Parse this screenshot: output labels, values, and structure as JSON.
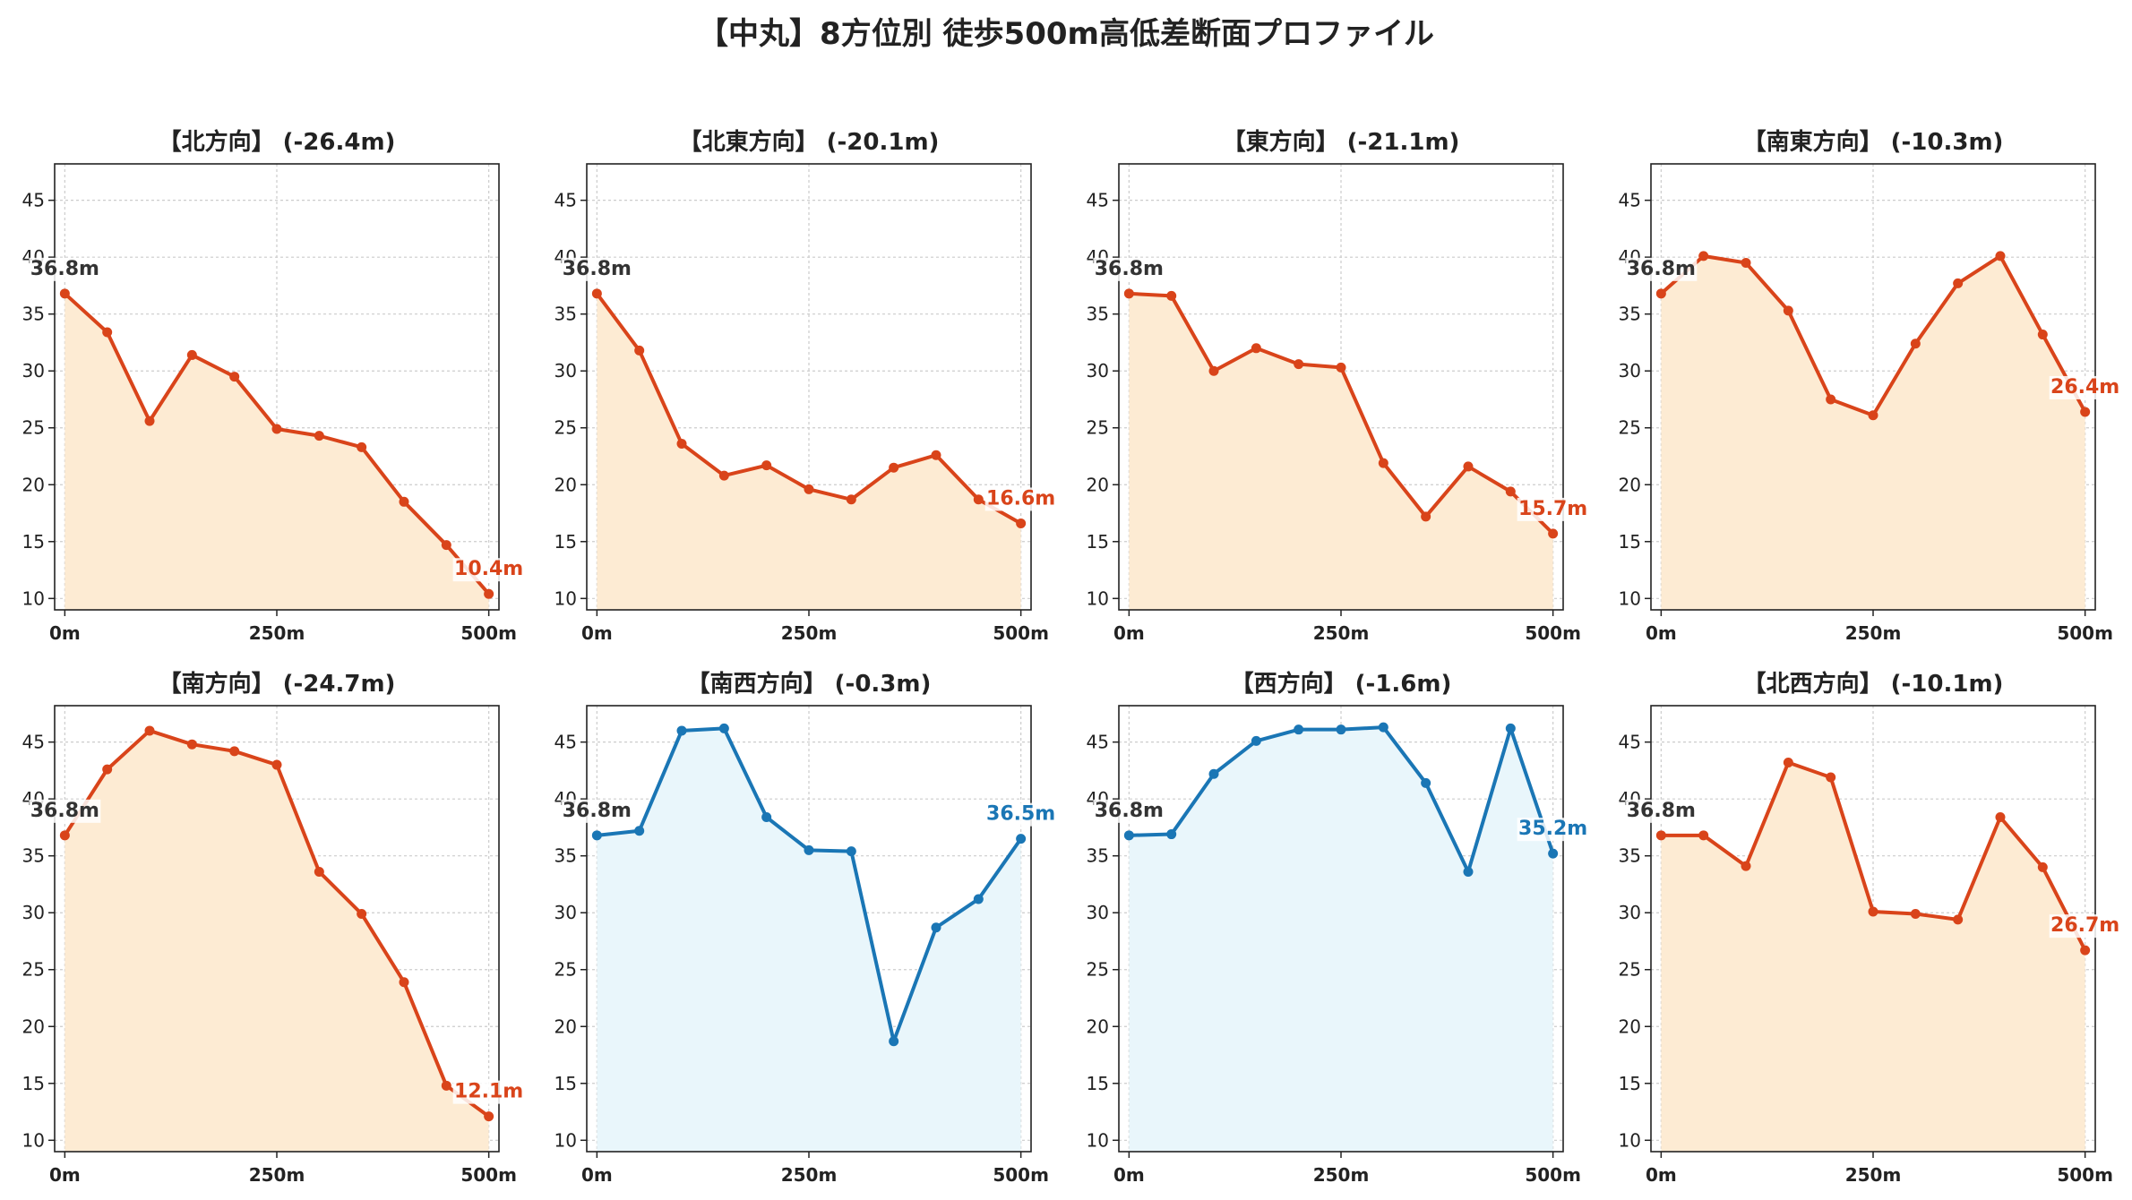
{
  "title": "【中丸】8方位別 徒歩500m高低差断面プロファイル",
  "colors": {
    "loss_line": "#d9441a",
    "loss_fill": "#fdebd3",
    "flat_line": "#1a76b5",
    "flat_fill": "#e9f6fb",
    "start_label": "#333333",
    "grid": "#cccccc",
    "axis": "#222222"
  },
  "chart_data": [
    {
      "type": "area",
      "title": "【北方向】 (-26.4m)",
      "theme": "loss",
      "x": [
        0,
        50,
        100,
        150,
        200,
        250,
        300,
        350,
        400,
        450,
        500
      ],
      "y": [
        36.8,
        33.4,
        25.6,
        31.4,
        29.5,
        24.9,
        24.3,
        23.3,
        18.5,
        14.7,
        10.4
      ],
      "start_label": "36.8m",
      "end_label": "10.4m",
      "xlim": [
        -12,
        512
      ],
      "ylim": [
        9,
        48.2
      ],
      "xticks": [
        {
          "v": 0,
          "label": "0m"
        },
        {
          "v": 250,
          "label": "250m"
        },
        {
          "v": 500,
          "label": "500m"
        }
      ],
      "yticks": [
        {
          "v": 10,
          "label": "10"
        },
        {
          "v": 15,
          "label": "15"
        },
        {
          "v": 20,
          "label": "20"
        },
        {
          "v": 25,
          "label": "25"
        },
        {
          "v": 30,
          "label": "30"
        },
        {
          "v": 35,
          "label": "35"
        },
        {
          "v": 40,
          "label": "40"
        },
        {
          "v": 45,
          "label": "45"
        }
      ],
      "grid": true
    },
    {
      "type": "area",
      "title": "【北東方向】 (-20.1m)",
      "theme": "loss",
      "x": [
        0,
        50,
        100,
        150,
        200,
        250,
        300,
        350,
        400,
        450,
        500
      ],
      "y": [
        36.8,
        31.8,
        23.6,
        20.8,
        21.7,
        19.6,
        18.7,
        21.5,
        22.6,
        18.7,
        16.6
      ],
      "start_label": "36.8m",
      "end_label": "16.6m",
      "xlim": [
        -12,
        512
      ],
      "ylim": [
        9,
        48.2
      ],
      "xticks": [
        {
          "v": 0,
          "label": "0m"
        },
        {
          "v": 250,
          "label": "250m"
        },
        {
          "v": 500,
          "label": "500m"
        }
      ],
      "yticks": [
        {
          "v": 10,
          "label": "10"
        },
        {
          "v": 15,
          "label": "15"
        },
        {
          "v": 20,
          "label": "20"
        },
        {
          "v": 25,
          "label": "25"
        },
        {
          "v": 30,
          "label": "30"
        },
        {
          "v": 35,
          "label": "35"
        },
        {
          "v": 40,
          "label": "40"
        },
        {
          "v": 45,
          "label": "45"
        }
      ],
      "grid": true
    },
    {
      "type": "area",
      "title": "【東方向】 (-21.1m)",
      "theme": "loss",
      "x": [
        0,
        50,
        100,
        150,
        200,
        250,
        300,
        350,
        400,
        450,
        500
      ],
      "y": [
        36.8,
        36.6,
        30.0,
        32.0,
        30.6,
        30.3,
        21.9,
        17.2,
        21.6,
        19.4,
        15.7
      ],
      "start_label": "36.8m",
      "end_label": "15.7m",
      "xlim": [
        -12,
        512
      ],
      "ylim": [
        9,
        48.2
      ],
      "xticks": [
        {
          "v": 0,
          "label": "0m"
        },
        {
          "v": 250,
          "label": "250m"
        },
        {
          "v": 500,
          "label": "500m"
        }
      ],
      "yticks": [
        {
          "v": 10,
          "label": "10"
        },
        {
          "v": 15,
          "label": "15"
        },
        {
          "v": 20,
          "label": "20"
        },
        {
          "v": 25,
          "label": "25"
        },
        {
          "v": 30,
          "label": "30"
        },
        {
          "v": 35,
          "label": "35"
        },
        {
          "v": 40,
          "label": "40"
        },
        {
          "v": 45,
          "label": "45"
        }
      ],
      "grid": true
    },
    {
      "type": "area",
      "title": "【南東方向】 (-10.3m)",
      "theme": "loss",
      "x": [
        0,
        50,
        100,
        150,
        200,
        250,
        300,
        350,
        400,
        450,
        500
      ],
      "y": [
        36.8,
        40.1,
        39.5,
        35.3,
        27.5,
        26.1,
        32.4,
        37.7,
        40.1,
        33.2,
        26.4
      ],
      "start_label": "36.8m",
      "end_label": "26.4m",
      "xlim": [
        -12,
        512
      ],
      "ylim": [
        9,
        48.2
      ],
      "xticks": [
        {
          "v": 0,
          "label": "0m"
        },
        {
          "v": 250,
          "label": "250m"
        },
        {
          "v": 500,
          "label": "500m"
        }
      ],
      "yticks": [
        {
          "v": 10,
          "label": "10"
        },
        {
          "v": 15,
          "label": "15"
        },
        {
          "v": 20,
          "label": "20"
        },
        {
          "v": 25,
          "label": "25"
        },
        {
          "v": 30,
          "label": "30"
        },
        {
          "v": 35,
          "label": "35"
        },
        {
          "v": 40,
          "label": "40"
        },
        {
          "v": 45,
          "label": "45"
        }
      ],
      "grid": true
    },
    {
      "type": "area",
      "title": "【南方向】 (-24.7m)",
      "theme": "loss",
      "x": [
        0,
        50,
        100,
        150,
        200,
        250,
        300,
        350,
        400,
        450,
        500
      ],
      "y": [
        36.8,
        42.6,
        46.0,
        44.8,
        44.2,
        43.0,
        33.6,
        29.9,
        23.9,
        14.8,
        12.1
      ],
      "start_label": "36.8m",
      "end_label": "12.1m",
      "xlim": [
        -12,
        512
      ],
      "ylim": [
        9,
        48.2
      ],
      "xticks": [
        {
          "v": 0,
          "label": "0m"
        },
        {
          "v": 250,
          "label": "250m"
        },
        {
          "v": 500,
          "label": "500m"
        }
      ],
      "yticks": [
        {
          "v": 10,
          "label": "10"
        },
        {
          "v": 15,
          "label": "15"
        },
        {
          "v": 20,
          "label": "20"
        },
        {
          "v": 25,
          "label": "25"
        },
        {
          "v": 30,
          "label": "30"
        },
        {
          "v": 35,
          "label": "35"
        },
        {
          "v": 40,
          "label": "40"
        },
        {
          "v": 45,
          "label": "45"
        }
      ],
      "grid": true
    },
    {
      "type": "area",
      "title": "【南西方向】 (-0.3m)",
      "theme": "flat",
      "x": [
        0,
        50,
        100,
        150,
        200,
        250,
        300,
        350,
        400,
        450,
        500
      ],
      "y": [
        36.8,
        37.2,
        46.0,
        46.2,
        38.4,
        35.5,
        35.4,
        18.7,
        28.7,
        31.2,
        36.5
      ],
      "start_label": "36.8m",
      "end_label": "36.5m",
      "xlim": [
        -12,
        512
      ],
      "ylim": [
        9,
        48.2
      ],
      "xticks": [
        {
          "v": 0,
          "label": "0m"
        },
        {
          "v": 250,
          "label": "250m"
        },
        {
          "v": 500,
          "label": "500m"
        }
      ],
      "yticks": [
        {
          "v": 10,
          "label": "10"
        },
        {
          "v": 15,
          "label": "15"
        },
        {
          "v": 20,
          "label": "20"
        },
        {
          "v": 25,
          "label": "25"
        },
        {
          "v": 30,
          "label": "30"
        },
        {
          "v": 35,
          "label": "35"
        },
        {
          "v": 40,
          "label": "40"
        },
        {
          "v": 45,
          "label": "45"
        }
      ],
      "grid": true
    },
    {
      "type": "area",
      "title": "【西方向】 (-1.6m)",
      "theme": "flat",
      "x": [
        0,
        50,
        100,
        150,
        200,
        250,
        300,
        350,
        400,
        450,
        500
      ],
      "y": [
        36.8,
        36.9,
        42.2,
        45.1,
        46.1,
        46.1,
        46.3,
        41.4,
        33.6,
        46.2,
        35.2
      ],
      "start_label": "36.8m",
      "end_label": "35.2m",
      "xlim": [
        -12,
        512
      ],
      "ylim": [
        9,
        48.2
      ],
      "xticks": [
        {
          "v": 0,
          "label": "0m"
        },
        {
          "v": 250,
          "label": "250m"
        },
        {
          "v": 500,
          "label": "500m"
        }
      ],
      "yticks": [
        {
          "v": 10,
          "label": "10"
        },
        {
          "v": 15,
          "label": "15"
        },
        {
          "v": 20,
          "label": "20"
        },
        {
          "v": 25,
          "label": "25"
        },
        {
          "v": 30,
          "label": "30"
        },
        {
          "v": 35,
          "label": "35"
        },
        {
          "v": 40,
          "label": "40"
        },
        {
          "v": 45,
          "label": "45"
        }
      ],
      "grid": true
    },
    {
      "type": "area",
      "title": "【北西方向】 (-10.1m)",
      "theme": "loss",
      "x": [
        0,
        50,
        100,
        150,
        200,
        250,
        300,
        350,
        400,
        450,
        500
      ],
      "y": [
        36.8,
        36.8,
        34.1,
        43.2,
        41.9,
        30.1,
        29.9,
        29.4,
        38.4,
        34.0,
        26.7
      ],
      "start_label": "36.8m",
      "end_label": "26.7m",
      "xlim": [
        -12,
        512
      ],
      "ylim": [
        9,
        48.2
      ],
      "xticks": [
        {
          "v": 0,
          "label": "0m"
        },
        {
          "v": 250,
          "label": "250m"
        },
        {
          "v": 500,
          "label": "500m"
        }
      ],
      "yticks": [
        {
          "v": 10,
          "label": "10"
        },
        {
          "v": 15,
          "label": "15"
        },
        {
          "v": 20,
          "label": "20"
        },
        {
          "v": 25,
          "label": "25"
        },
        {
          "v": 30,
          "label": "30"
        },
        {
          "v": 35,
          "label": "35"
        },
        {
          "v": 40,
          "label": "40"
        },
        {
          "v": 45,
          "label": "45"
        }
      ],
      "grid": true
    }
  ]
}
